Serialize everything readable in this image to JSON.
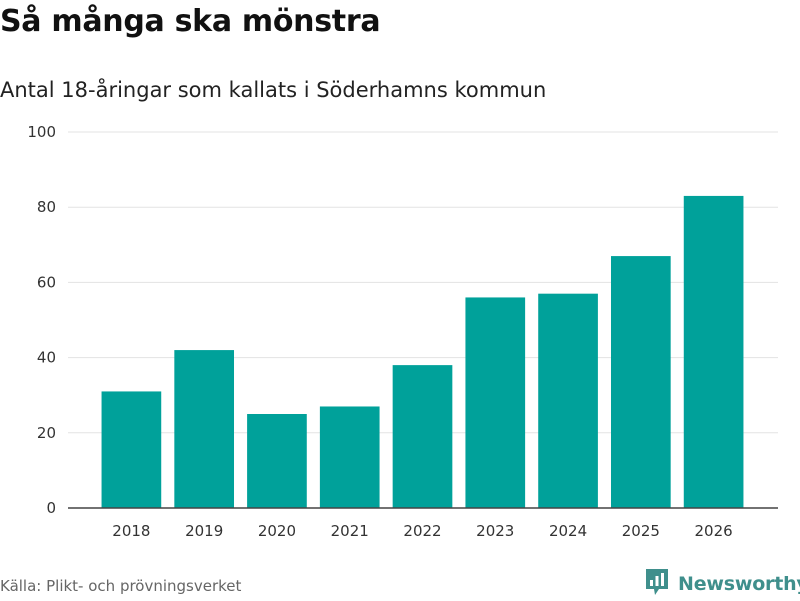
{
  "header": {
    "title": "Så många ska mönstra",
    "subtitle": "Antal 18-åringar som kallats i Söderhamns kommun"
  },
  "chart_data": {
    "type": "bar",
    "title": "Så många ska mönstra",
    "subtitle": "Antal 18-åringar som kallats i Söderhamns kommun",
    "xlabel": "",
    "ylabel": "",
    "categories": [
      "2018",
      "2019",
      "2020",
      "2021",
      "2022",
      "2023",
      "2024",
      "2025",
      "2026"
    ],
    "values": [
      31,
      42,
      25,
      27,
      38,
      56,
      57,
      67,
      83
    ],
    "ylim": [
      0,
      100
    ],
    "yticks": [
      0,
      20,
      40,
      60,
      80,
      100
    ],
    "grid": true,
    "legend": "none",
    "bar_color": "#00a19a"
  },
  "footer": {
    "source": "Källa: Plikt- och prövningsverket",
    "brand": "Newsworthy",
    "brand_color": "#3f8f8c"
  }
}
